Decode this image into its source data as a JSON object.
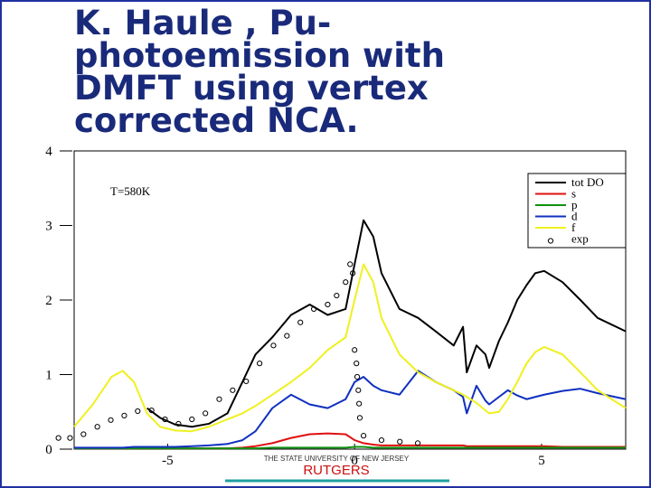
{
  "title_lines": [
    "K. Haule , Pu-",
    "photoemission with",
    "DMFT using vertex",
    "corrected NCA."
  ],
  "footer": {
    "university": "THE STATE UNIVERSITY OF NEW JERSEY",
    "name": "RUTGERS"
  },
  "chart_data": {
    "type": "line",
    "annotation": "T=580K",
    "x": [
      -7.5,
      -7,
      -6.5,
      -6.2,
      -5.9,
      -5.55,
      -5.2,
      -4.8,
      -4.35,
      -3.9,
      -3.4,
      -3,
      -2.65,
      -2.2,
      -1.7,
      -1.2,
      -0.72,
      -0.24,
      0,
      0.24,
      0.5,
      0.72,
      1.2,
      1.7,
      2.17,
      2.65,
      2.9,
      3,
      3.26,
      3.5,
      3.6,
      3.86,
      4.1,
      4.35,
      4.6,
      4.83,
      5.07,
      5.56,
      6.04,
      6.5,
      7.25
    ],
    "series": [
      {
        "name": "tot DO",
        "color": "#000000",
        "values": [
          null,
          null,
          null,
          null,
          null,
          0.55,
          0.42,
          0.33,
          0.3,
          0.34,
          0.48,
          0.9,
          1.27,
          1.5,
          1.8,
          1.94,
          1.8,
          1.88,
          2.48,
          3.07,
          2.85,
          2.36,
          1.88,
          1.76,
          1.58,
          1.39,
          1.64,
          1.03,
          1.39,
          1.27,
          1.09,
          1.45,
          1.7,
          2.0,
          2.2,
          2.36,
          2.39,
          2.24,
          2.0,
          1.76,
          1.58
        ]
      },
      {
        "name": "s",
        "color": "#e01010",
        "values": [
          0.01,
          0.01,
          0.01,
          0.01,
          0.01,
          0.01,
          0.01,
          0.01,
          0.01,
          0.01,
          0.01,
          0.02,
          0.04,
          0.08,
          0.15,
          0.2,
          0.21,
          0.2,
          0.12,
          0.08,
          0.06,
          0.05,
          0.05,
          0.05,
          0.05,
          0.05,
          0.05,
          0.04,
          0.04,
          0.04,
          0.04,
          0.04,
          0.04,
          0.04,
          0.04,
          0.04,
          0.04,
          0.03,
          0.03,
          0.03,
          0.03
        ]
      },
      {
        "name": "p",
        "color": "#109010",
        "values": [
          0.01,
          0.01,
          0.01,
          0.01,
          0.01,
          0.01,
          0.01,
          0.01,
          0.01,
          0.01,
          0.01,
          0.01,
          0.01,
          0.02,
          0.02,
          0.02,
          0.02,
          0.02,
          0.03,
          0.03,
          0.02,
          0.02,
          0.02,
          0.02,
          0.02,
          0.02,
          0.02,
          0.02,
          0.02,
          0.02,
          0.02,
          0.02,
          0.02,
          0.02,
          0.02,
          0.02,
          0.02,
          0.02,
          0.02,
          0.02,
          0.02
        ]
      },
      {
        "name": "d",
        "color": "#1030c0",
        "values": [
          0.02,
          0.02,
          0.02,
          0.02,
          0.03,
          0.03,
          0.03,
          0.03,
          0.04,
          0.05,
          0.07,
          0.12,
          0.24,
          0.55,
          0.73,
          0.6,
          0.55,
          0.67,
          0.9,
          0.97,
          0.85,
          0.79,
          0.73,
          1.05,
          0.9,
          0.79,
          0.7,
          0.48,
          0.85,
          0.65,
          0.6,
          0.7,
          0.79,
          0.72,
          0.67,
          0.7,
          0.73,
          0.78,
          0.81,
          0.75,
          0.67
        ]
      },
      {
        "name": "f",
        "color": "#f0f020",
        "values": [
          0.3,
          0.6,
          0.97,
          1.05,
          0.9,
          0.48,
          0.3,
          0.25,
          0.24,
          0.3,
          0.4,
          0.48,
          0.58,
          0.73,
          0.9,
          1.09,
          1.33,
          1.5,
          2.0,
          2.48,
          2.24,
          1.76,
          1.27,
          1.03,
          0.9,
          0.79,
          0.73,
          0.7,
          0.62,
          0.52,
          0.48,
          0.5,
          0.67,
          0.9,
          1.15,
          1.3,
          1.37,
          1.27,
          1.03,
          0.79,
          0.55
        ]
      },
      {
        "name": "exp",
        "color": "#000000",
        "marker": "circle",
        "x": [
          -7.92,
          -7.61,
          -7.25,
          -6.88,
          -6.52,
          -6.16,
          -5.8,
          -5.43,
          -5.07,
          -4.71,
          -4.35,
          -3.99,
          -3.62,
          -3.26,
          -2.9,
          -2.54,
          -2.17,
          -1.81,
          -1.45,
          -1.09,
          -0.72,
          -0.48,
          -0.24,
          -0.12,
          -0.05,
          0,
          0.05,
          0.07,
          0.1,
          0.12,
          0.14,
          0.24,
          0.72,
          1.21,
          1.69
        ],
        "values": [
          0.15,
          0.15,
          0.2,
          0.3,
          0.39,
          0.45,
          0.51,
          0.52,
          0.4,
          0.34,
          0.4,
          0.48,
          0.67,
          0.79,
          0.91,
          1.15,
          1.39,
          1.52,
          1.7,
          1.88,
          1.94,
          2.06,
          2.24,
          2.48,
          2.36,
          1.33,
          1.15,
          0.97,
          0.79,
          0.61,
          0.42,
          0.18,
          0.12,
          0.1,
          0.08
        ]
      }
    ],
    "xlim": [
      -7.5,
      7.25
    ],
    "xticks": [
      -5,
      0,
      5
    ],
    "ylim": [
      0,
      4
    ],
    "yticks": [
      0,
      1,
      2,
      3,
      4
    ],
    "legend": "upper right"
  }
}
